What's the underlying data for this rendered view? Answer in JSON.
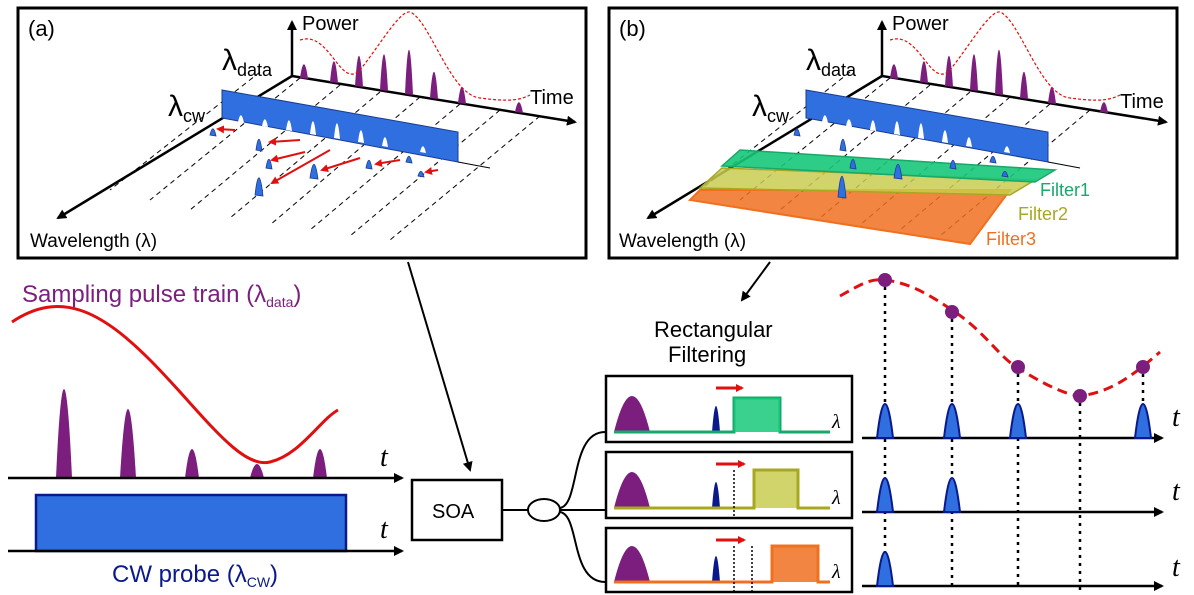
{
  "panel_a": {
    "tag": "(a)",
    "power_label": "Power",
    "time_label": "Time",
    "wavelength_label": "Wavelength (λ)",
    "lambda_data_main": "λ",
    "lambda_data_sub": "data",
    "lambda_cw_main": "λ",
    "lambda_cw_sub": "cw"
  },
  "panel_b": {
    "tag": "(b)",
    "power_label": "Power",
    "time_label": "Time",
    "wavelength_label": "Wavelength (λ)",
    "lambda_data_main": "λ",
    "lambda_data_sub": "data",
    "lambda_cw_main": "λ",
    "lambda_cw_sub": "cw",
    "filter1": "Filter1",
    "filter2": "Filter2",
    "filter3": "Filter3"
  },
  "lower_left": {
    "sampling_label_main": "Sampling pulse train (λ",
    "sampling_label_sub": "data",
    "sampling_label_end": ")",
    "cw_label_main": "CW probe (λ",
    "cw_label_sub": "CW",
    "cw_label_end": ")",
    "t_axis_1": "t",
    "t_axis_2": "t"
  },
  "center": {
    "soa_label": "SOA",
    "rect_filter_line1": "Rectangular",
    "rect_filter_line2": "Filtering"
  },
  "lower_right": {
    "lambda_1": "λ",
    "lambda_2": "λ",
    "lambda_3": "λ",
    "t_1": "t",
    "t_2": "t",
    "t_3": "t"
  },
  "colors": {
    "purple": "#7b1e7e",
    "red": "#e01010",
    "blue": "#2f6fe0",
    "dark_blue": "#0a1a8c",
    "filter1": "#17a86a",
    "filter2": "#a8a820",
    "filter3": "#f07020"
  }
}
